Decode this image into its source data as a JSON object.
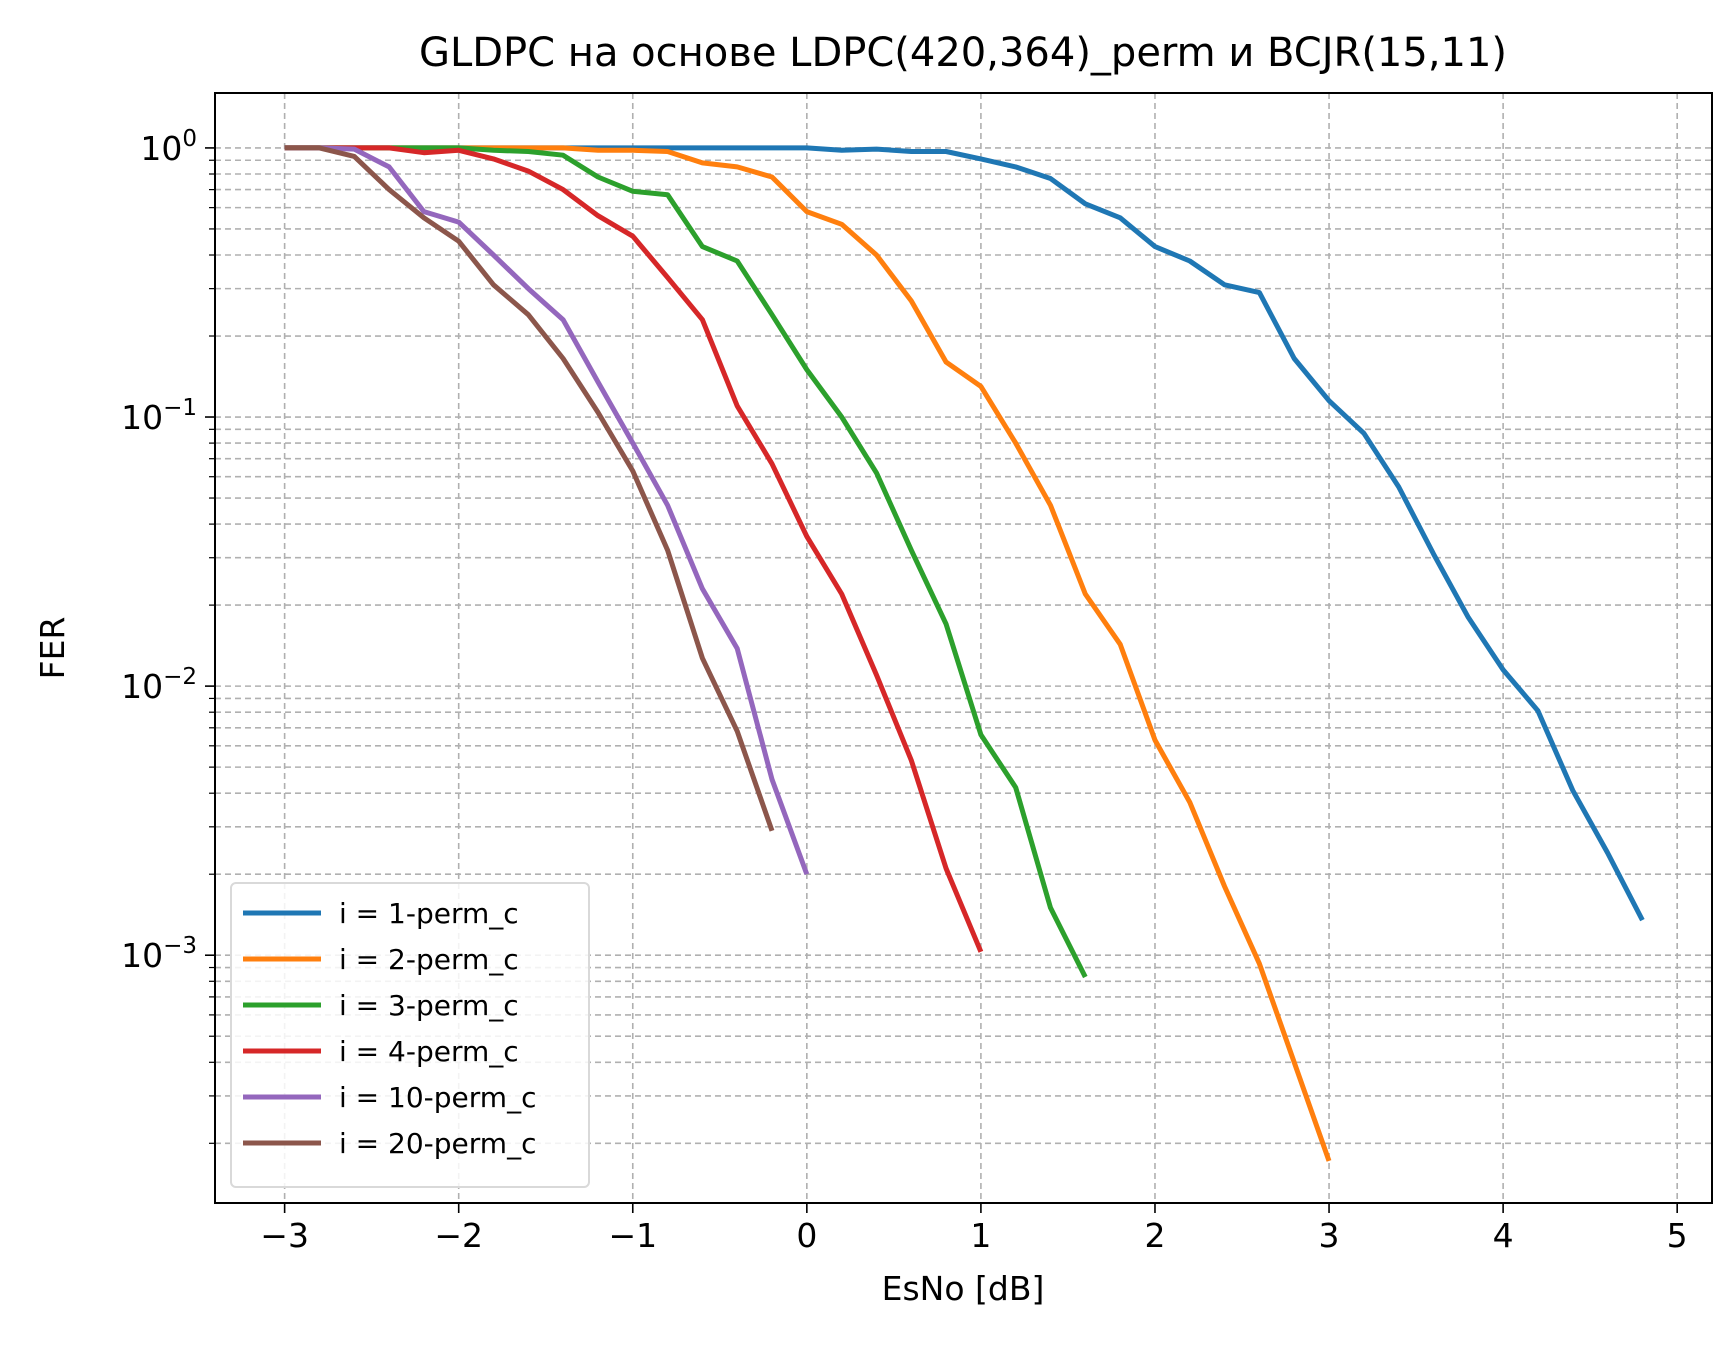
{
  "chart_data": {
    "type": "line",
    "title": "GLDPC на основе LDPC(420,364)_perm и BCJR(15,11)",
    "xlabel": "EsNo [dB]",
    "ylabel": "FER",
    "xlim": [
      -3.4,
      5.2
    ],
    "ylim": [
      0.00012,
      1.6
    ],
    "y_scale": "log",
    "grid": true,
    "grid_minor": true,
    "legend_position": "lower left",
    "x_ticks": [
      -3,
      -2,
      -1,
      0,
      1,
      2,
      3,
      4,
      5
    ],
    "x_tick_labels": [
      "−3",
      "−2",
      "−1",
      "0",
      "1",
      "2",
      "3",
      "4",
      "5"
    ],
    "y_ticks": [
      {
        "value": 1,
        "mantissa": "10",
        "exponent": "0"
      },
      {
        "value": 0.1,
        "mantissa": "10",
        "exponent": "−1"
      },
      {
        "value": 0.01,
        "mantissa": "10",
        "exponent": "−2"
      },
      {
        "value": 0.001,
        "mantissa": "10",
        "exponent": "−3"
      }
    ],
    "series": [
      {
        "name": "i = 1-perm_c",
        "color": "#1f77b4",
        "x": [
          -3.0,
          -2.8,
          -2.6,
          -2.4,
          -2.2,
          -2.0,
          -1.8,
          -1.6,
          -1.4,
          -1.2,
          -1.0,
          -0.8,
          -0.6,
          -0.4,
          -0.2,
          0.0,
          0.2,
          0.4,
          0.6,
          0.8,
          1.0,
          1.2,
          1.4,
          1.6,
          1.8,
          2.0,
          2.2,
          2.4,
          2.6,
          2.8,
          3.0,
          3.2,
          3.4,
          3.6,
          3.8,
          4.0,
          4.2,
          4.4,
          4.6,
          4.8
        ],
        "y": [
          1.0,
          1.0,
          1.0,
          1.0,
          1.0,
          1.0,
          1.0,
          1.0,
          1.0,
          1.0,
          1.0,
          1.0,
          1.0,
          1.0,
          1.0,
          1.0,
          0.98,
          0.99,
          0.97,
          0.97,
          0.91,
          0.85,
          0.77,
          0.62,
          0.55,
          0.43,
          0.38,
          0.31,
          0.29,
          0.165,
          0.115,
          0.087,
          0.055,
          0.031,
          0.018,
          0.0115,
          0.0081,
          0.0041,
          0.0024,
          0.00135
        ]
      },
      {
        "name": "i = 2-perm_c",
        "color": "#ff7f0e",
        "x": [
          -3.0,
          -2.8,
          -2.6,
          -2.4,
          -2.2,
          -2.0,
          -1.8,
          -1.6,
          -1.4,
          -1.2,
          -1.0,
          -0.8,
          -0.6,
          -0.4,
          -0.2,
          0.0,
          0.2,
          0.4,
          0.6,
          0.8,
          1.0,
          1.2,
          1.4,
          1.6,
          1.8,
          2.0,
          2.2,
          2.4,
          2.6,
          2.8,
          3.0
        ],
        "y": [
          1.0,
          1.0,
          1.0,
          1.0,
          1.0,
          1.0,
          1.0,
          1.0,
          1.0,
          0.98,
          0.98,
          0.97,
          0.88,
          0.85,
          0.78,
          0.58,
          0.52,
          0.4,
          0.27,
          0.16,
          0.13,
          0.08,
          0.047,
          0.022,
          0.0143,
          0.0063,
          0.0037,
          0.0018,
          0.00093,
          0.0004,
          0.000172
        ]
      },
      {
        "name": "i = 3-perm_c",
        "color": "#2ca02c",
        "x": [
          -3.0,
          -2.8,
          -2.6,
          -2.4,
          -2.2,
          -2.0,
          -1.8,
          -1.6,
          -1.4,
          -1.2,
          -1.0,
          -0.8,
          -0.6,
          -0.4,
          -0.2,
          0.0,
          0.2,
          0.4,
          0.6,
          0.8,
          1.0,
          1.2,
          1.4,
          1.6
        ],
        "y": [
          1.0,
          1.0,
          1.0,
          1.0,
          1.0,
          1.0,
          0.98,
          0.97,
          0.94,
          0.78,
          0.69,
          0.67,
          0.43,
          0.38,
          0.24,
          0.15,
          0.1,
          0.062,
          0.032,
          0.017,
          0.0066,
          0.0042,
          0.0015,
          0.00083
        ]
      },
      {
        "name": "i = 4-perm_c",
        "color": "#d62728",
        "x": [
          -3.0,
          -2.8,
          -2.6,
          -2.4,
          -2.2,
          -2.0,
          -1.8,
          -1.6,
          -1.4,
          -1.2,
          -1.0,
          -0.8,
          -0.6,
          -0.4,
          -0.2,
          0.0,
          0.2,
          0.4,
          0.6,
          0.8,
          1.0
        ],
        "y": [
          1.0,
          1.0,
          1.0,
          1.0,
          0.96,
          0.98,
          0.91,
          0.82,
          0.7,
          0.56,
          0.47,
          0.33,
          0.23,
          0.11,
          0.067,
          0.036,
          0.022,
          0.011,
          0.0053,
          0.0021,
          0.00103
        ]
      },
      {
        "name": "i = 10-perm_c",
        "color": "#9467bd",
        "x": [
          -3.0,
          -2.8,
          -2.6,
          -2.4,
          -2.2,
          -2.0,
          -1.8,
          -1.6,
          -1.4,
          -1.2,
          -1.0,
          -0.8,
          -0.6,
          -0.4,
          -0.2,
          0.0
        ],
        "y": [
          1.0,
          1.0,
          0.99,
          0.85,
          0.58,
          0.53,
          0.4,
          0.3,
          0.23,
          0.135,
          0.08,
          0.047,
          0.023,
          0.0138,
          0.0045,
          0.002
        ]
      },
      {
        "name": "i = 20-perm_c",
        "color": "#8c564b",
        "x": [
          -3.0,
          -2.8,
          -2.6,
          -2.4,
          -2.2,
          -2.0,
          -1.8,
          -1.6,
          -1.4,
          -1.2,
          -1.0,
          -0.8,
          -0.6,
          -0.4,
          -0.2
        ],
        "y": [
          1.0,
          1.0,
          0.93,
          0.7,
          0.55,
          0.45,
          0.31,
          0.24,
          0.165,
          0.104,
          0.063,
          0.032,
          0.0127,
          0.0068,
          0.0029
        ]
      }
    ]
  }
}
